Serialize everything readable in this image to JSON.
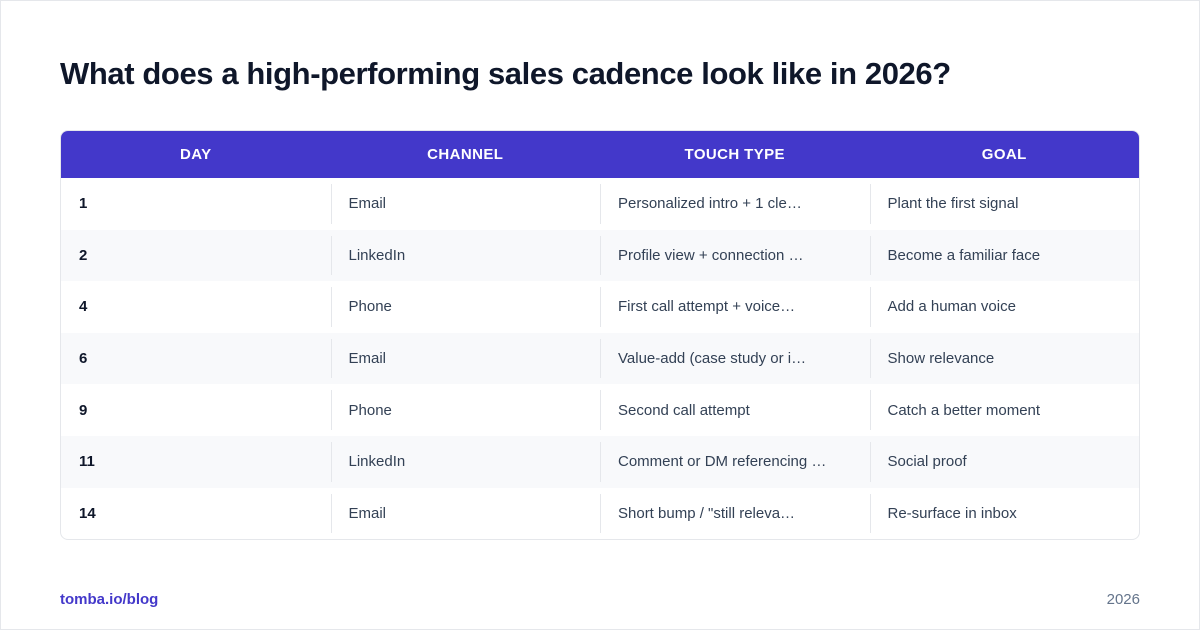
{
  "title": "What does a high-performing sales cadence look like in 2026?",
  "table": {
    "headers": [
      "DAY",
      "CHANNEL",
      "TOUCH TYPE",
      "GOAL"
    ],
    "rows": [
      {
        "day": "1",
        "channel": "Email",
        "touch": "Personalized intro + 1 cle…",
        "goal": "Plant the first signal"
      },
      {
        "day": "2",
        "channel": "LinkedIn",
        "touch": "Profile view + connection …",
        "goal": "Become a familiar face"
      },
      {
        "day": "4",
        "channel": "Phone",
        "touch": "First call attempt + voice…",
        "goal": "Add a human voice"
      },
      {
        "day": "6",
        "channel": "Email",
        "touch": "Value-add (case study or i…",
        "goal": "Show relevance"
      },
      {
        "day": "9",
        "channel": "Phone",
        "touch": "Second call attempt",
        "goal": "Catch a better moment"
      },
      {
        "day": "11",
        "channel": "LinkedIn",
        "touch": "Comment or DM referencing …",
        "goal": "Social proof"
      },
      {
        "day": "14",
        "channel": "Email",
        "touch": "Short bump / \"still releva…",
        "goal": "Re-surface in inbox"
      }
    ]
  },
  "footer": {
    "link": "tomba.io/blog",
    "year": "2026"
  },
  "colors": {
    "accent": "#4338ca",
    "title": "#0f172a",
    "alt_row": "#f8f9fb"
  }
}
